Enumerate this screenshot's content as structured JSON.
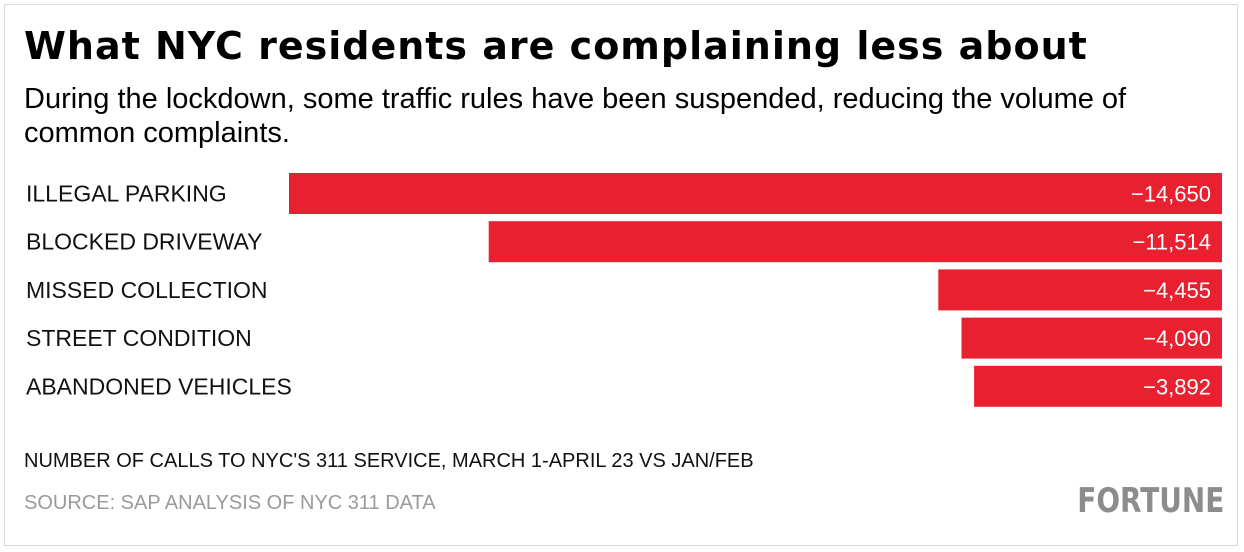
{
  "header": {
    "title": "What NYC residents are complaining less about",
    "subtitle": "During the lockdown, some traffic rules have been suspended, reducing the volume of common complaints."
  },
  "chart_data": {
    "type": "bar",
    "orientation": "horizontal",
    "categories": [
      "ILLEGAL PARKING",
      "BLOCKED DRIVEWAY",
      "MISSED COLLECTION",
      "STREET CONDITION",
      "ABANDONED VEHICLES"
    ],
    "values": [
      -14650,
      -11514,
      -4455,
      -4090,
      -3892
    ],
    "value_labels": [
      "−14,650",
      "−11,514",
      "−4,455",
      "−4,090",
      "−3,892"
    ],
    "xlim": [
      -14650,
      0
    ],
    "grid": false,
    "legend": "none",
    "bar_color": "#e8202f"
  },
  "footer": {
    "note": "NUMBER OF CALLS TO NYC'S 311 SERVICE, MARCH 1-APRIL 23 VS JAN/FEB",
    "source": "SOURCE: SAP ANALYSIS OF NYC 311 DATA",
    "brand": "FORTUNE"
  },
  "colors": {
    "bar": "#e8202f",
    "source_text": "#9a9a9a",
    "brand_text": "#8c8c8c"
  }
}
